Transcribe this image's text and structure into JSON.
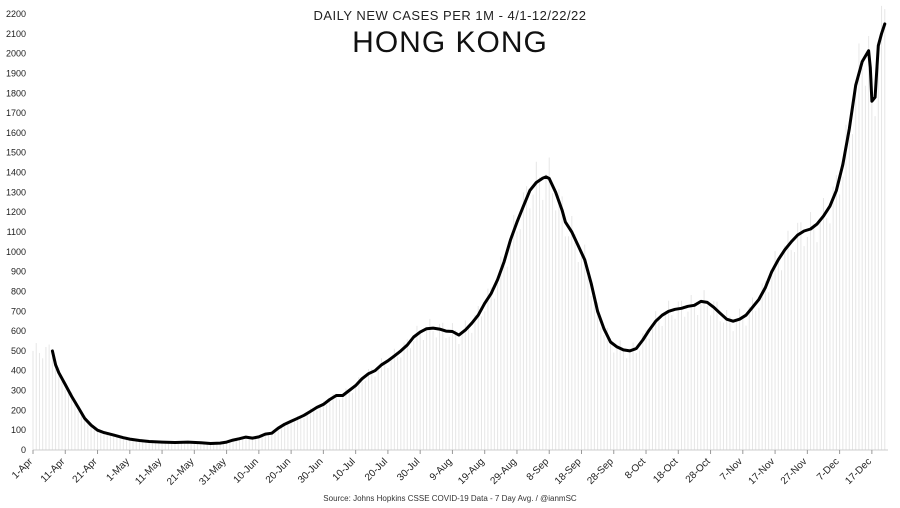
{
  "chart_data": {
    "type": "line",
    "title": "HONG KONG",
    "subtitle": "DAILY NEW CASES PER 1M - 4/1-12/22/22",
    "source": "Source: Johns Hopkins CSSE COVID-19 Data - 7 Day Avg. / @ianmSC",
    "ylim": [
      0,
      2200
    ],
    "yticks": [
      0,
      100,
      200,
      300,
      400,
      500,
      600,
      700,
      800,
      900,
      1000,
      1100,
      1200,
      1300,
      1400,
      1500,
      1600,
      1700,
      1800,
      1900,
      2000,
      2100,
      2200
    ],
    "xlim": [
      0,
      265
    ],
    "xticks": [
      {
        "day": 0,
        "label": "1-Apr"
      },
      {
        "day": 10,
        "label": "11-Apr"
      },
      {
        "day": 20,
        "label": "21-Apr"
      },
      {
        "day": 30,
        "label": "1-May"
      },
      {
        "day": 40,
        "label": "11-May"
      },
      {
        "day": 50,
        "label": "21-May"
      },
      {
        "day": 60,
        "label": "31-May"
      },
      {
        "day": 70,
        "label": "10-Jun"
      },
      {
        "day": 80,
        "label": "20-Jun"
      },
      {
        "day": 90,
        "label": "30-Jun"
      },
      {
        "day": 100,
        "label": "10-Jul"
      },
      {
        "day": 110,
        "label": "20-Jul"
      },
      {
        "day": 120,
        "label": "30-Jul"
      },
      {
        "day": 130,
        "label": "9-Aug"
      },
      {
        "day": 140,
        "label": "19-Aug"
      },
      {
        "day": 150,
        "label": "29-Aug"
      },
      {
        "day": 160,
        "label": "8-Sep"
      },
      {
        "day": 170,
        "label": "18-Sep"
      },
      {
        "day": 180,
        "label": "28-Sep"
      },
      {
        "day": 190,
        "label": "8-Oct"
      },
      {
        "day": 200,
        "label": "18-Oct"
      },
      {
        "day": 210,
        "label": "28-Oct"
      },
      {
        "day": 220,
        "label": "7-Nov"
      },
      {
        "day": 230,
        "label": "17-Nov"
      },
      {
        "day": 240,
        "label": "27-Nov"
      },
      {
        "day": 250,
        "label": "7-Dec"
      },
      {
        "day": 260,
        "label": "17-Dec"
      }
    ],
    "series": [
      {
        "color": "#000000",
        "points": [
          [
            6,
            500
          ],
          [
            7,
            430
          ],
          [
            8,
            390
          ],
          [
            10,
            330
          ],
          [
            12,
            270
          ],
          [
            14,
            215
          ],
          [
            16,
            160
          ],
          [
            18,
            125
          ],
          [
            20,
            100
          ],
          [
            22,
            88
          ],
          [
            25,
            75
          ],
          [
            28,
            62
          ],
          [
            30,
            55
          ],
          [
            33,
            48
          ],
          [
            36,
            43
          ],
          [
            40,
            40
          ],
          [
            44,
            38
          ],
          [
            48,
            40
          ],
          [
            52,
            37
          ],
          [
            55,
            33
          ],
          [
            58,
            35
          ],
          [
            60,
            40
          ],
          [
            62,
            50
          ],
          [
            64,
            57
          ],
          [
            66,
            65
          ],
          [
            68,
            60
          ],
          [
            70,
            66
          ],
          [
            72,
            80
          ],
          [
            74,
            85
          ],
          [
            76,
            110
          ],
          [
            78,
            130
          ],
          [
            80,
            145
          ],
          [
            82,
            160
          ],
          [
            84,
            175
          ],
          [
            86,
            195
          ],
          [
            88,
            215
          ],
          [
            90,
            230
          ],
          [
            92,
            255
          ],
          [
            94,
            275
          ],
          [
            96,
            275
          ],
          [
            98,
            300
          ],
          [
            100,
            325
          ],
          [
            102,
            360
          ],
          [
            104,
            385
          ],
          [
            106,
            400
          ],
          [
            108,
            430
          ],
          [
            110,
            450
          ],
          [
            112,
            475
          ],
          [
            114,
            500
          ],
          [
            116,
            530
          ],
          [
            118,
            570
          ],
          [
            120,
            595
          ],
          [
            122,
            612
          ],
          [
            124,
            615
          ],
          [
            126,
            610
          ],
          [
            128,
            600
          ],
          [
            130,
            598
          ],
          [
            132,
            580
          ],
          [
            134,
            605
          ],
          [
            136,
            640
          ],
          [
            138,
            680
          ],
          [
            140,
            740
          ],
          [
            142,
            790
          ],
          [
            144,
            860
          ],
          [
            146,
            950
          ],
          [
            148,
            1060
          ],
          [
            150,
            1150
          ],
          [
            152,
            1230
          ],
          [
            154,
            1310
          ],
          [
            156,
            1350
          ],
          [
            158,
            1372
          ],
          [
            159,
            1378
          ],
          [
            160,
            1370
          ],
          [
            162,
            1300
          ],
          [
            164,
            1210
          ],
          [
            165,
            1150
          ],
          [
            167,
            1100
          ],
          [
            169,
            1030
          ],
          [
            171,
            960
          ],
          [
            173,
            840
          ],
          [
            175,
            700
          ],
          [
            177,
            610
          ],
          [
            179,
            545
          ],
          [
            181,
            520
          ],
          [
            183,
            505
          ],
          [
            185,
            500
          ],
          [
            187,
            512
          ],
          [
            189,
            555
          ],
          [
            191,
            605
          ],
          [
            193,
            650
          ],
          [
            195,
            680
          ],
          [
            197,
            700
          ],
          [
            199,
            710
          ],
          [
            201,
            715
          ],
          [
            203,
            725
          ],
          [
            205,
            730
          ],
          [
            207,
            750
          ],
          [
            209,
            745
          ],
          [
            211,
            720
          ],
          [
            213,
            690
          ],
          [
            215,
            660
          ],
          [
            217,
            650
          ],
          [
            219,
            660
          ],
          [
            221,
            680
          ],
          [
            223,
            720
          ],
          [
            225,
            760
          ],
          [
            227,
            820
          ],
          [
            229,
            900
          ],
          [
            231,
            960
          ],
          [
            233,
            1010
          ],
          [
            235,
            1050
          ],
          [
            237,
            1085
          ],
          [
            239,
            1105
          ],
          [
            241,
            1115
          ],
          [
            243,
            1140
          ],
          [
            245,
            1180
          ],
          [
            247,
            1230
          ],
          [
            249,
            1310
          ],
          [
            251,
            1440
          ],
          [
            253,
            1620
          ],
          [
            255,
            1840
          ],
          [
            257,
            1960
          ],
          [
            259,
            2015
          ],
          [
            259.5,
            1930
          ],
          [
            260,
            1760
          ],
          [
            261,
            1780
          ],
          [
            262,
            2040
          ],
          [
            263,
            2100
          ],
          [
            264,
            2150
          ]
        ]
      }
    ]
  }
}
